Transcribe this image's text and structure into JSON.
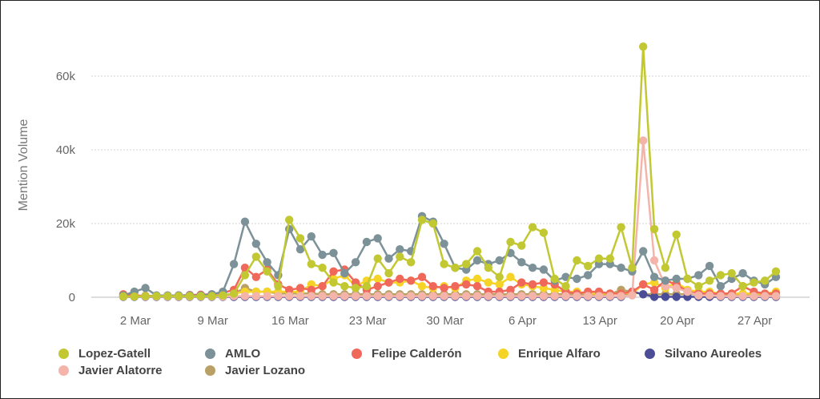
{
  "chart_data": {
    "type": "line",
    "ylabel": "Mention Volume",
    "xlabel": "",
    "ylim": [
      0,
      75000
    ],
    "y_ticks": [
      0,
      20000,
      40000,
      60000
    ],
    "y_tick_labels": [
      "0",
      "20k",
      "40k",
      "60k"
    ],
    "x_tick_labels": [
      "2 Mar",
      "9 Mar",
      "16 Mar",
      "23 Mar",
      "30 Mar",
      "6 Apr",
      "13 Apr",
      "20 Apr",
      "27 Apr"
    ],
    "x_tick_days": [
      2,
      9,
      16,
      23,
      30,
      37,
      44,
      51,
      58
    ],
    "x_start_day": 2,
    "grid": true,
    "legend_position": "bottom",
    "series": [
      {
        "name": "Lopez-Gatell",
        "color": "#c2c832",
        "values": [
          200,
          200,
          300,
          300,
          300,
          300,
          300,
          300,
          300,
          500,
          1000,
          6000,
          11000,
          7000,
          3000,
          21000,
          16000,
          9000,
          8000,
          4000,
          3000,
          2500,
          3000,
          10500,
          6500,
          11000,
          9500,
          21000,
          20000,
          9000,
          8000,
          9000,
          12500,
          8000,
          5500,
          15000,
          14000,
          19000,
          17500,
          5000,
          3000,
          10000,
          8500,
          10500,
          10500,
          19000,
          8000,
          68000,
          18500,
          8000,
          17000,
          5000,
          3000,
          4500,
          6000,
          6500,
          3000,
          4000,
          4500,
          7000
        ]
      },
      {
        "name": "AMLO",
        "color": "#7c9298",
        "values": [
          500,
          1500,
          2500,
          500,
          500,
          500,
          500,
          500,
          800,
          1500,
          9000,
          20500,
          14500,
          9500,
          6000,
          18500,
          13000,
          16500,
          11500,
          12000,
          6500,
          9500,
          15000,
          16000,
          10500,
          13000,
          12500,
          22000,
          20500,
          14500,
          8000,
          7500,
          10000,
          9000,
          10000,
          12000,
          9500,
          8000,
          7500,
          4500,
          5500,
          5000,
          6000,
          9000,
          9000,
          8000,
          7000,
          12500,
          5500,
          4500,
          5000,
          5000,
          6000,
          8500,
          3000,
          5000,
          6500,
          4500,
          3500,
          5500
        ]
      },
      {
        "name": "Felipe Calderón",
        "color": "#f0685a",
        "values": [
          800,
          500,
          400,
          400,
          400,
          500,
          600,
          700,
          800,
          1200,
          2000,
          8000,
          5500,
          7500,
          3500,
          2000,
          2500,
          2000,
          3000,
          7000,
          7500,
          4000,
          2000,
          3000,
          4000,
          5000,
          4500,
          5500,
          3000,
          2500,
          3000,
          3500,
          3000,
          1500,
          1500,
          2000,
          4000,
          3500,
          4000,
          3500,
          1500,
          1000,
          1500,
          1500,
          1000,
          1000,
          1500,
          3500,
          2000,
          4500,
          3500,
          1500,
          1000,
          1000,
          1000,
          1000,
          3000,
          1500,
          1000,
          1000
        ]
      },
      {
        "name": "Enrique Alfaro",
        "color": "#f5d327",
        "values": [
          300,
          300,
          300,
          300,
          300,
          300,
          300,
          300,
          300,
          500,
          1000,
          1500,
          1500,
          1500,
          1500,
          1500,
          1500,
          3500,
          3000,
          5000,
          6000,
          3000,
          4500,
          5000,
          4000,
          4000,
          4500,
          3000,
          2500,
          3000,
          2500,
          4500,
          5000,
          4000,
          3500,
          5500,
          3500,
          3000,
          2500,
          2000,
          1500,
          1500,
          1000,
          1000,
          1000,
          1000,
          1000,
          3500,
          4000,
          2500,
          4000,
          2000,
          1500,
          1500,
          1000,
          1000,
          1000,
          1000,
          1000,
          1500
        ]
      },
      {
        "name": "Silvano Aureoles",
        "color": "#4b4d97",
        "values": [
          100,
          100,
          100,
          100,
          100,
          100,
          100,
          100,
          100,
          100,
          100,
          100,
          100,
          100,
          100,
          100,
          100,
          100,
          100,
          100,
          100,
          100,
          100,
          100,
          100,
          100,
          100,
          100,
          100,
          100,
          100,
          100,
          100,
          100,
          100,
          100,
          100,
          100,
          100,
          100,
          100,
          100,
          100,
          100,
          100,
          100,
          1500,
          800,
          100,
          100,
          100,
          100,
          100,
          100,
          100,
          100,
          100,
          100,
          100,
          100
        ]
      },
      {
        "name": "Javier Alatorre",
        "color": "#f4b4aa",
        "values": [
          200,
          200,
          200,
          200,
          200,
          200,
          200,
          200,
          200,
          200,
          300,
          300,
          300,
          300,
          300,
          300,
          300,
          300,
          300,
          300,
          300,
          300,
          300,
          300,
          300,
          300,
          300,
          300,
          300,
          300,
          300,
          300,
          300,
          300,
          300,
          300,
          300,
          300,
          300,
          300,
          300,
          300,
          300,
          300,
          300,
          300,
          500,
          42500,
          10000,
          3000,
          2500,
          1500,
          500,
          500,
          300,
          300,
          300,
          300,
          300,
          300
        ]
      },
      {
        "name": "Javier Lozano",
        "color": "#b9a064",
        "values": [
          300,
          300,
          300,
          300,
          300,
          300,
          300,
          300,
          300,
          500,
          1000,
          2500,
          1500,
          1500,
          1000,
          1000,
          1000,
          1000,
          800,
          800,
          800,
          800,
          800,
          800,
          800,
          800,
          800,
          800,
          800,
          800,
          800,
          800,
          800,
          800,
          800,
          800,
          800,
          800,
          800,
          800,
          800,
          800,
          800,
          800,
          800,
          2000,
          1500,
          800,
          800,
          800,
          800,
          800,
          800,
          800,
          800,
          800,
          800,
          800,
          800,
          500
        ]
      }
    ]
  },
  "legend_items": [
    {
      "label": "Lopez-Gatell",
      "color": "#c2c832"
    },
    {
      "label": "AMLO",
      "color": "#7c9298"
    },
    {
      "label": "Felipe Calderón",
      "color": "#f0685a"
    },
    {
      "label": "Enrique Alfaro",
      "color": "#f5d327"
    },
    {
      "label": "Silvano Aureoles",
      "color": "#4b4d97"
    },
    {
      "label": "Javier Alatorre",
      "color": "#f4b4aa"
    },
    {
      "label": "Javier Lozano",
      "color": "#b9a064"
    }
  ]
}
